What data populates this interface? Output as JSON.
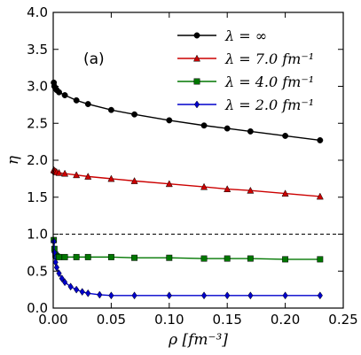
{
  "chart_data": {
    "type": "line",
    "panel_label": "(a)",
    "xlabel": "ρ [fm⁻³]",
    "ylabel": "η",
    "xlim": [
      0.0,
      0.25
    ],
    "ylim": [
      0.0,
      4.0
    ],
    "x_ticks": [
      0.0,
      0.05,
      0.1,
      0.15,
      0.2,
      0.25
    ],
    "x_tick_labels": [
      "0.00",
      "0.05",
      "0.10",
      "0.15",
      "0.20",
      "0.25"
    ],
    "y_ticks": [
      0.0,
      0.5,
      1.0,
      1.5,
      2.0,
      2.5,
      3.0,
      3.5,
      4.0
    ],
    "y_tick_labels": [
      "0.0",
      "0.5",
      "1.0",
      "1.5",
      "2.0",
      "2.5",
      "3.0",
      "3.5",
      "4.0"
    ],
    "grid": false,
    "legend_position": "top-right",
    "reference_line": {
      "y": 1.0,
      "style": "dashed",
      "color": "#000000"
    },
    "series": [
      {
        "name": "λ = ∞",
        "color": "#000000",
        "marker": "circle",
        "x": [
          0.0005,
          0.001,
          0.002,
          0.003,
          0.005,
          0.01,
          0.02,
          0.03,
          0.05,
          0.07,
          0.1,
          0.13,
          0.15,
          0.17,
          0.2,
          0.23
        ],
        "y": [
          3.05,
          3.0,
          2.97,
          2.95,
          2.92,
          2.88,
          2.81,
          2.76,
          2.68,
          2.62,
          2.54,
          2.47,
          2.43,
          2.39,
          2.33,
          2.27
        ]
      },
      {
        "name": "λ = 7.0 fm⁻¹",
        "color": "#cc0000",
        "marker": "triangle",
        "x": [
          0.0005,
          0.001,
          0.002,
          0.003,
          0.005,
          0.01,
          0.02,
          0.03,
          0.05,
          0.07,
          0.1,
          0.13,
          0.15,
          0.17,
          0.2,
          0.23
        ],
        "y": [
          1.87,
          1.86,
          1.85,
          1.84,
          1.83,
          1.82,
          1.8,
          1.78,
          1.75,
          1.72,
          1.68,
          1.64,
          1.61,
          1.59,
          1.55,
          1.51
        ]
      },
      {
        "name": "λ = 4.0 fm⁻¹",
        "color": "#007700",
        "marker": "square",
        "x": [
          0.0005,
          0.001,
          0.002,
          0.003,
          0.005,
          0.01,
          0.02,
          0.03,
          0.05,
          0.07,
          0.1,
          0.13,
          0.15,
          0.17,
          0.2,
          0.23
        ],
        "y": [
          0.92,
          0.8,
          0.72,
          0.7,
          0.69,
          0.69,
          0.69,
          0.69,
          0.69,
          0.68,
          0.68,
          0.67,
          0.67,
          0.67,
          0.66,
          0.66
        ]
      },
      {
        "name": "λ = 2.0 fm⁻¹",
        "color": "#0000cc",
        "marker": "diamond",
        "x": [
          0.0005,
          0.001,
          0.002,
          0.003,
          0.005,
          0.0075,
          0.01,
          0.015,
          0.02,
          0.025,
          0.03,
          0.04,
          0.05,
          0.07,
          0.1,
          0.13,
          0.15,
          0.17,
          0.2,
          0.23
        ],
        "y": [
          0.9,
          0.75,
          0.62,
          0.55,
          0.47,
          0.4,
          0.35,
          0.29,
          0.25,
          0.22,
          0.2,
          0.18,
          0.17,
          0.17,
          0.17,
          0.17,
          0.17,
          0.17,
          0.17,
          0.17
        ]
      }
    ]
  }
}
